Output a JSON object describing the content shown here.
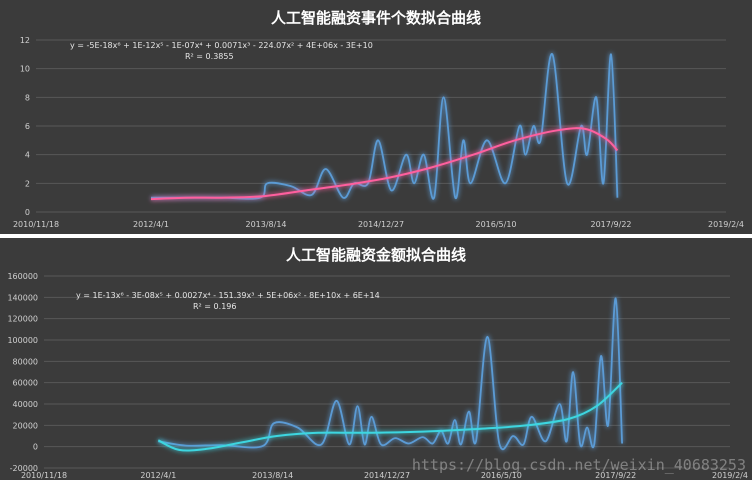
{
  "chart_data": [
    {
      "type": "line",
      "title": "人工智能融资事件个数拟合曲线",
      "x_tick_labels": [
        "2010/11/18",
        "2012/4/1",
        "2013/8/14",
        "2014/12/27",
        "2016/5/10",
        "2017/9/22",
        "2019/2/4"
      ],
      "x_ticks": [
        "2010-11-18",
        "2012-04-01",
        "2013-08-14",
        "2014-12-27",
        "2016-05-10",
        "2017-09-22",
        "2019-02-04"
      ],
      "ylim": [
        0,
        12
      ],
      "y_ticks": [
        0,
        2,
        4,
        6,
        8,
        10,
        12
      ],
      "y_tick_labels": [
        "0",
        "2",
        "4",
        "6",
        "8",
        "10",
        "12"
      ],
      "grid": true,
      "series": [
        {
          "role": "data",
          "color": "#5b9bd5",
          "points": [
            [
              "2012-04-01",
              1
            ],
            [
              "2012-09-01",
              1
            ],
            [
              "2013-02-01",
              1
            ],
            [
              "2013-07-20",
              1
            ],
            [
              "2013-08-20",
              2
            ],
            [
              "2013-12-01",
              1.8
            ],
            [
              "2014-03-01",
              1.2
            ],
            [
              "2014-05-01",
              3
            ],
            [
              "2014-07-15",
              1
            ],
            [
              "2014-09-01",
              2
            ],
            [
              "2014-11-01",
              2
            ],
            [
              "2014-12-15",
              5
            ],
            [
              "2015-02-10",
              1.5
            ],
            [
              "2015-04-15",
              4
            ],
            [
              "2015-05-20",
              2
            ],
            [
              "2015-07-01",
              4
            ],
            [
              "2015-08-15",
              1
            ],
            [
              "2015-09-25",
              8
            ],
            [
              "2015-11-15",
              1
            ],
            [
              "2015-12-20",
              5
            ],
            [
              "2016-01-20",
              2
            ],
            [
              "2016-04-01",
              5
            ],
            [
              "2016-06-20",
              2
            ],
            [
              "2016-08-20",
              6
            ],
            [
              "2016-09-15",
              4
            ],
            [
              "2016-10-20",
              6
            ],
            [
              "2016-11-20",
              5
            ],
            [
              "2017-01-10",
              11
            ],
            [
              "2017-03-15",
              2
            ],
            [
              "2017-05-15",
              6
            ],
            [
              "2017-06-10",
              4
            ],
            [
              "2017-07-20",
              8
            ],
            [
              "2017-08-20",
              2
            ],
            [
              "2017-09-22",
              11
            ],
            [
              "2017-10-20",
              1
            ]
          ]
        },
        {
          "role": "fit",
          "color": "#ff5f9e",
          "points": [
            [
              "2012-04-01",
              0.9
            ],
            [
              "2012-09-01",
              1.0
            ],
            [
              "2013-02-01",
              1.0
            ],
            [
              "2013-08-01",
              1.1
            ],
            [
              "2014-02-01",
              1.5
            ],
            [
              "2014-08-01",
              1.9
            ],
            [
              "2015-02-01",
              2.4
            ],
            [
              "2015-08-01",
              3.1
            ],
            [
              "2016-02-01",
              4.0
            ],
            [
              "2016-08-01",
              5.0
            ],
            [
              "2017-02-01",
              5.7
            ],
            [
              "2017-06-01",
              5.8
            ],
            [
              "2017-09-01",
              5.1
            ],
            [
              "2017-10-20",
              4.3
            ]
          ]
        }
      ],
      "equation": "y = -5E-18x⁶ + 1E-12x⁵ - 1E-07x⁴ + 0.0071x³ - 224.07x² + 4E+06x - 3E+10",
      "r_squared": "R² = 0.3855"
    },
    {
      "type": "line",
      "title": "人工智能融资金额拟合曲线",
      "x_tick_labels": [
        "2010/11/18",
        "2012/4/1",
        "2013/8/14",
        "2014/12/27",
        "2016/5/10",
        "2017/9/22",
        "2019/2/4"
      ],
      "x_ticks": [
        "2010-11-18",
        "2012-04-01",
        "2013-08-14",
        "2014-12-27",
        "2016-05-10",
        "2017-09-22",
        "2019-02-04"
      ],
      "ylim": [
        -20000,
        160000
      ],
      "y_ticks": [
        -20000,
        0,
        20000,
        40000,
        60000,
        80000,
        100000,
        120000,
        140000,
        160000
      ],
      "y_tick_labels": [
        "-20000",
        "0",
        "20000",
        "40000",
        "60000",
        "80000",
        "100000",
        "120000",
        "140000",
        "160000"
      ],
      "grid": true,
      "series": [
        {
          "role": "data",
          "color": "#5b9bd5",
          "points": [
            [
              "2012-04-01",
              5000
            ],
            [
              "2012-08-01",
              1000
            ],
            [
              "2013-01-01",
              1500
            ],
            [
              "2013-07-01",
              500
            ],
            [
              "2013-08-20",
              22000
            ],
            [
              "2013-12-01",
              18000
            ],
            [
              "2014-03-15",
              2000
            ],
            [
              "2014-05-20",
              43000
            ],
            [
              "2014-07-15",
              2000
            ],
            [
              "2014-08-20",
              38000
            ],
            [
              "2014-09-20",
              2000
            ],
            [
              "2014-10-20",
              28000
            ],
            [
              "2014-12-01",
              2000
            ],
            [
              "2015-02-01",
              8000
            ],
            [
              "2015-04-01",
              3000
            ],
            [
              "2015-06-01",
              9000
            ],
            [
              "2015-07-15",
              3000
            ],
            [
              "2015-08-20",
              15000
            ],
            [
              "2015-09-20",
              3000
            ],
            [
              "2015-10-20",
              25000
            ],
            [
              "2015-11-15",
              2000
            ],
            [
              "2015-12-20",
              33000
            ],
            [
              "2016-01-20",
              5000
            ],
            [
              "2016-03-10",
              103000
            ],
            [
              "2016-05-01",
              3000
            ],
            [
              "2016-07-01",
              10000
            ],
            [
              "2016-08-15",
              2000
            ],
            [
              "2016-09-20",
              28000
            ],
            [
              "2016-11-20",
              5000
            ],
            [
              "2017-01-20",
              40000
            ],
            [
              "2017-02-20",
              5000
            ],
            [
              "2017-03-20",
              70000
            ],
            [
              "2017-04-20",
              2000
            ],
            [
              "2017-05-20",
              18000
            ],
            [
              "2017-06-20",
              2000
            ],
            [
              "2017-07-20",
              85000
            ],
            [
              "2017-08-20",
              20000
            ],
            [
              "2017-09-22",
              139000
            ],
            [
              "2017-10-20",
              3000
            ]
          ]
        },
        {
          "role": "fit",
          "color": "#3dd6e0",
          "points": [
            [
              "2012-04-01",
              6000
            ],
            [
              "2012-07-01",
              -3000
            ],
            [
              "2012-11-01",
              -2000
            ],
            [
              "2013-04-01",
              4000
            ],
            [
              "2013-09-01",
              10000
            ],
            [
              "2014-03-01",
              13000
            ],
            [
              "2014-09-01",
              13000
            ],
            [
              "2015-03-01",
              13500
            ],
            [
              "2015-09-01",
              15000
            ],
            [
              "2016-03-01",
              17000
            ],
            [
              "2016-09-01",
              20000
            ],
            [
              "2017-03-01",
              26000
            ],
            [
              "2017-07-01",
              38000
            ],
            [
              "2017-10-20",
              60000
            ]
          ]
        }
      ],
      "equation": "y = 1E-13x⁶ - 3E-08x⁵ + 0.0027x⁴ - 151.39x³ + 5E+06x² - 8E+10x + 6E+14",
      "r_squared": "R² = 0.196"
    }
  ],
  "watermark": "https://blog.csdn.net/weixin_40683253"
}
